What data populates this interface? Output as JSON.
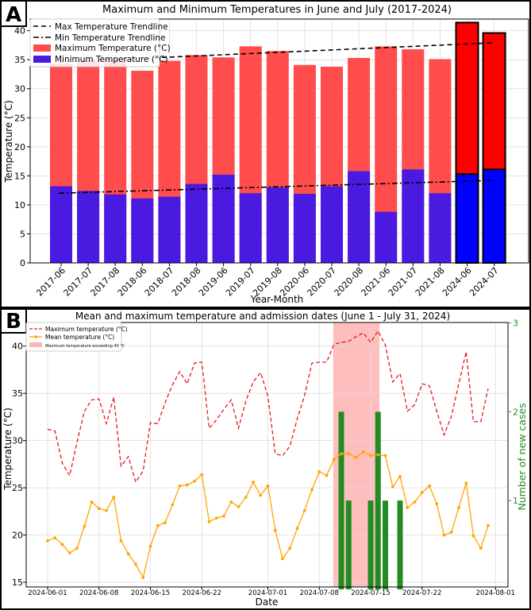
{
  "chart_data": [
    {
      "panel_label": "A",
      "type": "bar",
      "title": "Maximum and Minimum Temperatures in June and July (2017-2024)",
      "xlabel": "Year-Month",
      "ylabel": "Temperature (°C)",
      "ylim": [
        0,
        42
      ],
      "yticks": [
        0,
        5,
        10,
        15,
        20,
        25,
        30,
        35,
        40
      ],
      "grid": true,
      "legend_position": "top-left",
      "categories": [
        "2017-06",
        "2017-07",
        "2017-08",
        "2018-06",
        "2018-07",
        "2018-08",
        "2019-06",
        "2019-07",
        "2019-08",
        "2020-06",
        "2020-07",
        "2020-08",
        "2021-06",
        "2021-07",
        "2021-08",
        "2024-06",
        "2024-07"
      ],
      "series": [
        {
          "name": "Maximum Temperature (°C)",
          "color": "#ff4c4c",
          "highlight_color": "#ff0000",
          "values": [
            34.3,
            34.8,
            35.0,
            33.1,
            34.8,
            35.8,
            35.4,
            37.3,
            36.5,
            34.1,
            33.8,
            35.3,
            37.3,
            36.8,
            35.1,
            41.4,
            39.6
          ]
        },
        {
          "name": "Minimum Temperature (°C)",
          "color": "#4a1ae0",
          "highlight_color": "#0000ff",
          "values": [
            13.2,
            12.4,
            11.8,
            11.1,
            11.4,
            13.6,
            15.2,
            12.0,
            13.0,
            11.9,
            13.2,
            15.8,
            8.8,
            16.1,
            12.0,
            15.3,
            16.1
          ]
        }
      ],
      "highlighted_categories": [
        "2024-06",
        "2024-07"
      ],
      "trendlines": [
        {
          "name": "Max Temperature Trendline",
          "style": "dashed",
          "start": 34.6,
          "end": 37.9
        },
        {
          "name": "Min Temperature Trendline",
          "style": "dash-dot",
          "start": 12.0,
          "end": 14.2
        }
      ]
    },
    {
      "panel_label": "B",
      "type": "line",
      "title": "Mean and maximum temperature and admission dates (June 1 - July 31, 2024)",
      "xlabel": "Date",
      "ylabel": "Temperature (°C)",
      "y2label": "Number of new cases",
      "ylim": [
        14.5,
        42.5
      ],
      "yticks": [
        15,
        20,
        25,
        30,
        35,
        40
      ],
      "y2lim": [
        0,
        3
      ],
      "y2ticks": [
        1,
        2,
        3
      ],
      "grid": true,
      "legend_position": "top-left",
      "x_start_date": "2024-06-01",
      "xticks": [
        "2024-06-01",
        "2024-06-08",
        "2024-06-15",
        "2024-06-22",
        "2024-07-01",
        "2024-07-08",
        "2024-07-15",
        "2024-07-22",
        "2024-08-01"
      ],
      "x_tick_days": [
        0,
        7,
        14,
        21,
        30,
        37,
        44,
        51,
        61
      ],
      "series": [
        {
          "name": "Maximum temperature (°C)",
          "style": "dashed",
          "color": "#e41a1c",
          "values": [
            31.2,
            31.0,
            27.6,
            26.3,
            29.8,
            33.1,
            34.3,
            34.4,
            31.8,
            34.6,
            27.3,
            28.3,
            25.6,
            26.8,
            31.9,
            31.8,
            34.0,
            35.9,
            37.3,
            36.0,
            38.2,
            38.3,
            31.3,
            32.2,
            33.3,
            34.3,
            31.3,
            34.2,
            36.2,
            37.2,
            34.7,
            28.6,
            28.4,
            29.4,
            32.3,
            34.8,
            38.2,
            38.3,
            38.3,
            40.2,
            40.4,
            40.5,
            41.0,
            41.4,
            40.4,
            41.6,
            40.1,
            36.2,
            37.1,
            33.1,
            33.8,
            36.0,
            35.8,
            33.1,
            30.6,
            32.6,
            36.0,
            39.4,
            32.0,
            32.0,
            35.5
          ]
        },
        {
          "name": "Mean temperature (°C)",
          "style": "solid-marker",
          "color": "#ffa500",
          "values": [
            19.4,
            19.7,
            19.0,
            18.1,
            18.6,
            20.9,
            23.5,
            22.8,
            22.6,
            24.0,
            19.4,
            18.0,
            16.9,
            15.5,
            18.8,
            21.0,
            21.3,
            23.2,
            25.2,
            25.3,
            25.7,
            26.4,
            21.4,
            21.8,
            22.0,
            23.5,
            23.0,
            24.0,
            25.6,
            24.2,
            25.2,
            20.5,
            17.5,
            18.6,
            20.7,
            22.6,
            24.8,
            26.7,
            26.3,
            28.0,
            28.6,
            28.6,
            28.2,
            28.8,
            28.4,
            28.5,
            28.4,
            25.1,
            26.2,
            22.9,
            23.5,
            24.5,
            25.2,
            23.3,
            20.0,
            20.3,
            22.9,
            25.5,
            19.9,
            18.6,
            21.0
          ]
        }
      ],
      "shaded_region": {
        "name": "Maximum temperature exceeding 40 ℃",
        "from": "2024-07-10",
        "to": "2024-07-16",
        "color": "#ffb3b3"
      },
      "cases": {
        "name": "Number of new cases",
        "color": "#228b22",
        "dates": [
          "2024-07-11",
          "2024-07-12",
          "2024-07-15",
          "2024-07-16",
          "2024-07-17",
          "2024-07-19"
        ],
        "values": [
          2,
          1,
          1,
          2,
          1,
          1
        ]
      }
    }
  ]
}
